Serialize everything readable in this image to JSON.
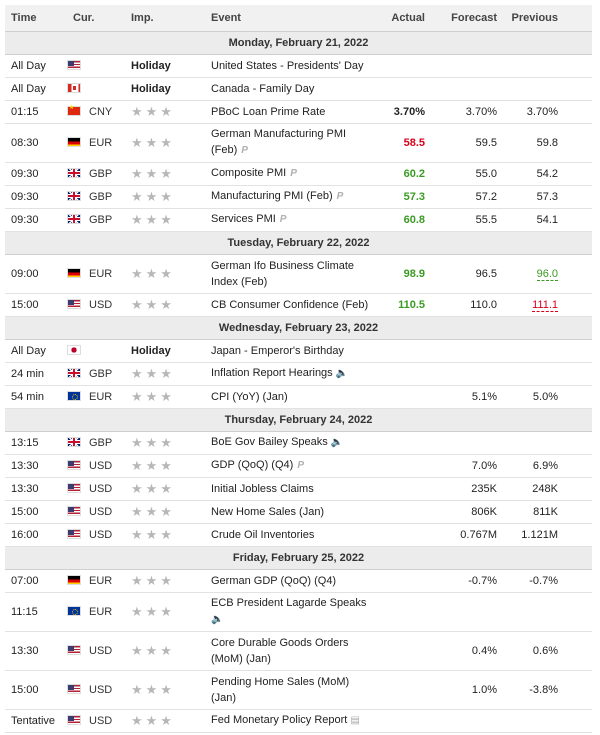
{
  "headers": {
    "time": "Time",
    "cur": "Cur.",
    "imp": "Imp.",
    "event": "Event",
    "actual": "Actual",
    "forecast": "Forecast",
    "previous": "Previous"
  },
  "stars": "★★★",
  "colors": {
    "positive": "#3a9b22",
    "negative": "#d9001b",
    "day_bg": "#ececec",
    "header_bg": "#f1f1f1"
  },
  "days": [
    {
      "label": "Monday, February 21, 2022",
      "rows": [
        {
          "time": "All Day",
          "flag": "us",
          "cur": "",
          "imp": "Holiday",
          "event": "United States - Presidents' Day",
          "actual": "",
          "actual_color": "",
          "forecast": "",
          "previous": "",
          "prev_style": ""
        },
        {
          "time": "All Day",
          "flag": "ca",
          "cur": "",
          "imp": "Holiday",
          "event": "Canada - Family Day",
          "actual": "",
          "actual_color": "",
          "forecast": "",
          "previous": "",
          "prev_style": ""
        },
        {
          "time": "01:15",
          "flag": "cn",
          "cur": "CNY",
          "event": "PBoC Loan Prime Rate",
          "actual": "3.70%",
          "actual_color": "black",
          "forecast": "3.70%",
          "previous": "3.70%",
          "prev_style": ""
        },
        {
          "time": "08:30",
          "flag": "de",
          "cur": "EUR",
          "event": "German Manufacturing PMI (Feb)",
          "tall": true,
          "note": "P",
          "actual": "58.5",
          "actual_color": "red",
          "forecast": "59.5",
          "previous": "59.8",
          "prev_style": ""
        },
        {
          "time": "09:30",
          "flag": "gb",
          "cur": "GBP",
          "event": "Composite PMI",
          "note": "P",
          "actual": "60.2",
          "actual_color": "green",
          "forecast": "55.0",
          "previous": "54.2",
          "prev_style": ""
        },
        {
          "time": "09:30",
          "flag": "gb",
          "cur": "GBP",
          "event": "Manufacturing PMI (Feb)",
          "note": "P",
          "actual": "57.3",
          "actual_color": "green",
          "forecast": "57.2",
          "previous": "57.3",
          "prev_style": ""
        },
        {
          "time": "09:30",
          "flag": "gb",
          "cur": "GBP",
          "event": "Services PMI",
          "note": "P",
          "actual": "60.8",
          "actual_color": "green",
          "forecast": "55.5",
          "previous": "54.1",
          "prev_style": ""
        }
      ]
    },
    {
      "label": "Tuesday, February 22, 2022",
      "rows": [
        {
          "time": "09:00",
          "flag": "de",
          "cur": "EUR",
          "event": "German Ifo Business Climate Index (Feb)",
          "tall": true,
          "actual": "98.9",
          "actual_color": "green",
          "forecast": "96.5",
          "previous": "96.0",
          "prev_style": "prev-green"
        },
        {
          "time": "15:00",
          "flag": "us",
          "cur": "USD",
          "event": "CB Consumer Confidence (Feb)",
          "actual": "110.5",
          "actual_color": "green",
          "forecast": "110.0",
          "previous": "111.1",
          "prev_style": "prev-red"
        }
      ]
    },
    {
      "label": "Wednesday, February 23, 2022",
      "rows": [
        {
          "time": "All Day",
          "flag": "jp",
          "cur": "",
          "imp": "Holiday",
          "event": "Japan - Emperor's Birthday",
          "actual": "",
          "actual_color": "",
          "forecast": "",
          "previous": "",
          "prev_style": ""
        },
        {
          "time": "24 min",
          "flag": "gb",
          "cur": "GBP",
          "event": "Inflation Report Hearings",
          "speaker": true,
          "actual": "",
          "actual_color": "",
          "forecast": "",
          "previous": "",
          "prev_style": ""
        },
        {
          "time": "54 min",
          "flag": "eu",
          "cur": "EUR",
          "event": "CPI (YoY) (Jan)",
          "actual": "",
          "actual_color": "",
          "forecast": "5.1%",
          "previous": "5.0%",
          "prev_style": ""
        }
      ]
    },
    {
      "label": "Thursday, February 24, 2022",
      "rows": [
        {
          "time": "13:15",
          "flag": "gb",
          "cur": "GBP",
          "event": "BoE Gov Bailey Speaks",
          "speaker": true,
          "actual": "",
          "actual_color": "",
          "forecast": "",
          "previous": "",
          "prev_style": ""
        },
        {
          "time": "13:30",
          "flag": "us",
          "cur": "USD",
          "event": "GDP (QoQ) (Q4)",
          "note": "P",
          "actual": "",
          "actual_color": "",
          "forecast": "7.0%",
          "previous": "6.9%",
          "prev_style": ""
        },
        {
          "time": "13:30",
          "flag": "us",
          "cur": "USD",
          "event": "Initial Jobless Claims",
          "actual": "",
          "actual_color": "",
          "forecast": "235K",
          "previous": "248K",
          "prev_style": ""
        },
        {
          "time": "15:00",
          "flag": "us",
          "cur": "USD",
          "event": "New Home Sales (Jan)",
          "actual": "",
          "actual_color": "",
          "forecast": "806K",
          "previous": "811K",
          "prev_style": ""
        },
        {
          "time": "16:00",
          "flag": "us",
          "cur": "USD",
          "event": "Crude Oil Inventories",
          "actual": "",
          "actual_color": "",
          "forecast": "0.767M",
          "previous": "1.121M",
          "prev_style": ""
        }
      ]
    },
    {
      "label": "Friday, February 25, 2022",
      "rows": [
        {
          "time": "07:00",
          "flag": "de",
          "cur": "EUR",
          "event": "German GDP (QoQ) (Q4)",
          "actual": "",
          "actual_color": "",
          "forecast": "-0.7%",
          "previous": "-0.7%",
          "prev_style": ""
        },
        {
          "time": "11:15",
          "flag": "eu",
          "cur": "EUR",
          "event": "ECB President Lagarde Speaks",
          "tall": true,
          "speaker_newline": true,
          "actual": "",
          "actual_color": "",
          "forecast": "",
          "previous": "",
          "prev_style": ""
        },
        {
          "time": "13:30",
          "flag": "us",
          "cur": "USD",
          "event": "Core Durable Goods Orders (MoM) (Jan)",
          "tall": true,
          "actual": "",
          "actual_color": "",
          "forecast": "0.4%",
          "previous": "0.6%",
          "prev_style": ""
        },
        {
          "time": "15:00",
          "flag": "us",
          "cur": "USD",
          "event": "Pending Home Sales (MoM) (Jan)",
          "tall": true,
          "actual": "",
          "actual_color": "",
          "forecast": "1.0%",
          "previous": "-3.8%",
          "prev_style": ""
        },
        {
          "time": "Tentative",
          "flag": "us",
          "cur": "USD",
          "event": "Fed Monetary Policy Report",
          "report": true,
          "actual": "",
          "actual_color": "",
          "forecast": "",
          "previous": "",
          "prev_style": ""
        }
      ]
    }
  ]
}
